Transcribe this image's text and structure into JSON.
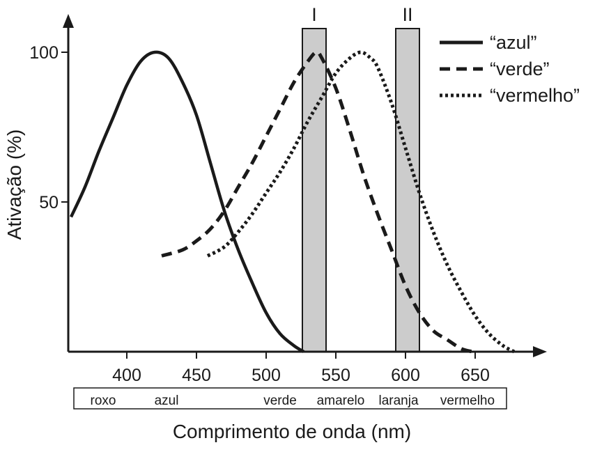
{
  "chart_data": {
    "type": "line",
    "xlabel": "Comprimento de onda (nm)",
    "ylabel": "Ativação (%)",
    "xlim": [
      360,
      685
    ],
    "ylim": [
      0,
      110
    ],
    "xticks": [
      400,
      450,
      500,
      550,
      600,
      650
    ],
    "yticks": [
      50,
      100
    ],
    "grid": false,
    "legend_position": "top-right",
    "series": [
      {
        "name": "“azul”",
        "style": "solid",
        "color": "#1a1a1a",
        "x": [
          360,
          370,
          380,
          390,
          400,
          410,
          420,
          430,
          440,
          450,
          460,
          470,
          480,
          490,
          500,
          510,
          520,
          527
        ],
        "y": [
          45,
          55,
          67,
          78,
          89,
          97,
          100,
          98,
          90,
          79,
          63,
          47,
          34,
          23,
          13,
          6,
          2,
          0
        ]
      },
      {
        "name": "“verde”",
        "style": "dashed",
        "color": "#1a1a1a",
        "x": [
          425,
          440,
          450,
          460,
          470,
          480,
          490,
          500,
          510,
          520,
          530,
          536,
          540,
          550,
          560,
          570,
          580,
          590,
          600,
          610,
          620,
          630,
          640,
          648
        ],
        "y": [
          32,
          34,
          37,
          41,
          47,
          55,
          63,
          72,
          81,
          90,
          97,
          100,
          98,
          88,
          74,
          59,
          46,
          34,
          22,
          13,
          7,
          4,
          1,
          0
        ]
      },
      {
        "name": "“vermelho”",
        "style": "dotted",
        "color": "#1a1a1a",
        "x": [
          458,
          470,
          480,
          490,
          500,
          510,
          520,
          530,
          540,
          550,
          560,
          568,
          575,
          580,
          590,
          600,
          610,
          620,
          630,
          640,
          650,
          660,
          670,
          678
        ],
        "y": [
          32,
          35,
          40,
          46,
          53,
          60,
          68,
          77,
          85,
          93,
          98,
          100,
          98,
          95,
          83,
          68,
          53,
          40,
          29,
          20,
          12,
          6,
          2,
          0
        ]
      }
    ],
    "bands": [
      {
        "label": "I",
        "x": [
          526,
          543
        ],
        "color": "#cccccc"
      },
      {
        "label": "II",
        "x": [
          593,
          610
        ],
        "color": "#cccccc"
      }
    ],
    "color_scale": [
      "roxo",
      "azul",
      "verde",
      "amarelo",
      "laranja",
      "vermelho"
    ]
  }
}
